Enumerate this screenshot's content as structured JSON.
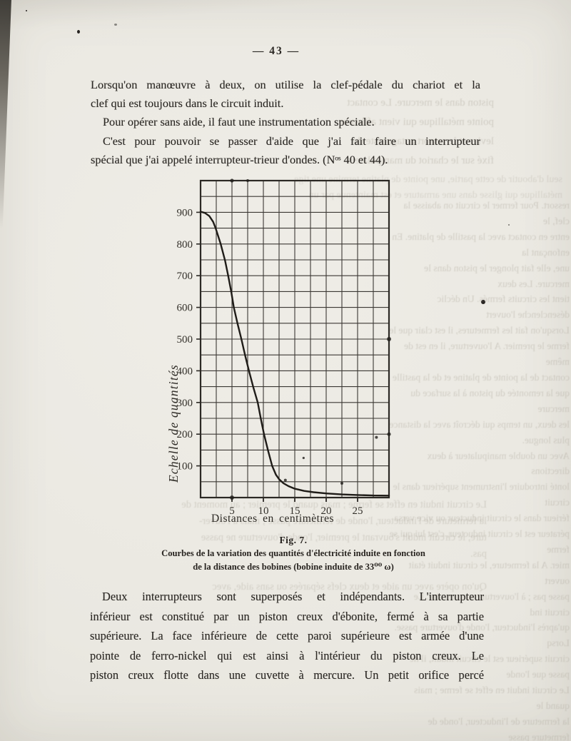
{
  "page_number": "— 43 —",
  "top_text": {
    "p1": "Lorsqu'on manœuvre à deux, on utilise la clef-pédale du chariot et la\nclef qui est toujours dans le circuit induit.",
    "p2": "Pour opérer sans aide, il faut une instrumentation spéciale.",
    "p3": "C'est pour pouvoir se passer d'aide que j'ai fait faire un interrupteur\nspécial que j'ai appelé interrupteur-trieur d'ondes. (Nᵒˢ 40 et 44)."
  },
  "figure": {
    "fig_label": "Fig. 7.",
    "caption_line1": "Courbes de la variation des quantités d'électricité induite en fonction",
    "caption_line2": "de la distance des bobines (bobine induite de 33⁰⁰ ω)"
  },
  "chart_data": {
    "type": "line",
    "title": "",
    "xlabel": "Distances en centimètres",
    "ylabel": "Echelle de quantités",
    "xlim": [
      0,
      30
    ],
    "ylim": [
      0,
      1000
    ],
    "x_minor_step": 2.5,
    "y_minor_step": 50,
    "x_tick_labels": [
      5,
      10,
      15,
      20,
      25
    ],
    "y_tick_labels": [
      100,
      200,
      300,
      400,
      500,
      600,
      700,
      800,
      900
    ],
    "grid": true,
    "legend": "none",
    "series": [
      {
        "name": "Quantité d'électricité induite",
        "points": [
          [
            0,
            902
          ],
          [
            0.7,
            898
          ],
          [
            1.4,
            888
          ],
          [
            2,
            870
          ],
          [
            2.4,
            850
          ],
          [
            3.2,
            800
          ],
          [
            3.9,
            748
          ],
          [
            4.4,
            700
          ],
          [
            4.9,
            648
          ],
          [
            5.3,
            600
          ],
          [
            5.9,
            548
          ],
          [
            6.5,
            500
          ],
          [
            7.1,
            448
          ],
          [
            7.7,
            400
          ],
          [
            8.4,
            348
          ],
          [
            9.1,
            300
          ],
          [
            9.6,
            248
          ],
          [
            10.1,
            200
          ],
          [
            10.75,
            148
          ],
          [
            11.4,
            100
          ],
          [
            12,
            72
          ],
          [
            12.5,
            58
          ],
          [
            13.2,
            45
          ],
          [
            14,
            36
          ],
          [
            15,
            28
          ],
          [
            16.5,
            21
          ],
          [
            18,
            17
          ],
          [
            20,
            13
          ],
          [
            22.5,
            10
          ],
          [
            25,
            8
          ],
          [
            27.5,
            6.5
          ],
          [
            30,
            6
          ]
        ]
      }
    ]
  },
  "bottom_text": {
    "p1": "Deux interrupteurs sont superposés et indépendants. L'interrupteur\ninférieur est constitué par un piston creux d'ébonite, fermé à sa partie\nsupérieure. La face inférieure de cette paroi supérieure est armée d'une\npointe de ferro-nickel qui est ainsi à l'intérieur du piston creux. Le\npiston creux flotte dans une cuvette à mercure. Un petit orifice percé"
  },
  "bleedthrough": {
    "top_area": "piston dans le mercure. Le contact\npointe métallique qui vient affleurer\nlevier et le ressort antagoniste du\nfixé sur le chariot du manipulateur",
    "upper_wide": "seul d'aboutir de cette partie, une pointe de platine termine une tige\nmétallique qui glisse dans une armature et est maintenue par un",
    "right_column": "ressort. Pour fermer le circuit on abaisse la clef, le\nentre en contact avec la pastille de platine. En enfonçant la\nune, elle fait plonger le piston dans le mercure. Les deux\ntient les circuits fermés. Un déclic désenclenche l'ouvert\nLorsqu'on fait les fermetures, il est clair que le\nferme le premier. A l'ouverture, il en est de même\ncontact de la pointe de platine et de la pastille\nque la remontée du piston à la surface du mercure\nles deux, un temps qui décroît avec la distance\nplus longue.\nAvec un double manipulateur à deux directions\nlonté introduire l'instrument supérieur dans le circuit\nférieur dans le circuit inducteur ou vice versa\npérateur est le circuit inducteur, c'est lui qui se ferme\nmier. A la fermeture, le circuit induit était ouvert\npasse pas ; à l'ouverture au contraire. Le circuit ind\nqu'après l'inducteur, l'onde d'ouverture passe. Lorsq\ncircuit supérieur est le circuit induit, il ne passe que l'onde\nLe circuit induit en effet se ferme ; mais quand le\nla fermeture de l'inducteur, l'onde de fermeture passe\nture, le circuit induit s'ouvrant le premier, l'onde",
    "below_chart": "Le circuit induit en effet se ferme ; mais quand le premier ; au moment de\nla fermeture de l'inducteur, l'onde de fermeture passe ; mais à l'ouver-\nture, le circuit induit s'ouvrant le premier, l'onde d'ouverture ne passe\npas.\n \nQu'on opère avec un aide et deux clefs séparées ou sans aide, avec"
  }
}
